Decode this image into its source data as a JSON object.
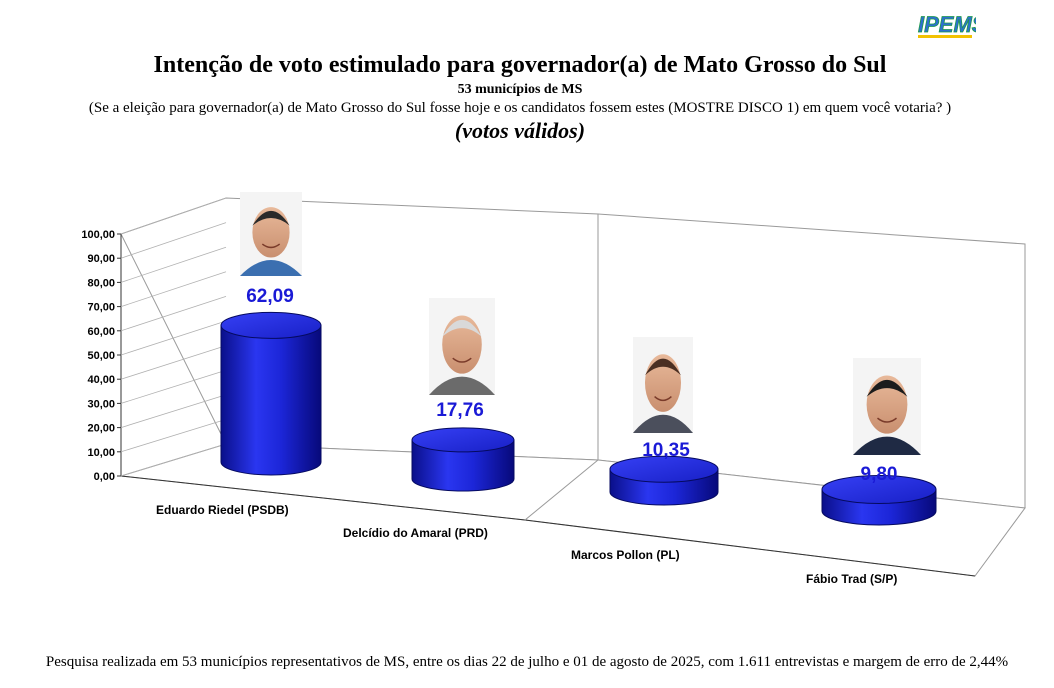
{
  "logo_text": "IPEMS",
  "title": "Intenção de voto estimulado para governador(a) de Mato Grosso do Sul",
  "subtitle": "53 municípios de  MS",
  "question": "(Se a eleição para governador(a) de Mato Grosso do Sul fosse hoje e os candidatos fossem estes (MOSTRE DISCO 1) em quem você votaria? )",
  "note": "(votos válidos)",
  "footer": "Pesquisa realizada em 53  municípios representativos de MS, entre os dias  22 de julho e 01 de agosto de 2025, com 1.611  entrevistas e margem de erro de 2,44%",
  "colors": {
    "bar": "#1f2be0",
    "label": "#1a1ad6"
  },
  "chart_data": {
    "type": "bar",
    "style": "3d-cylinder",
    "categories": [
      "Eduardo Riedel (PSDB)",
      "Delcídio do Amaral (PRD)",
      "Marcos Pollon (PL)",
      "Fábio Trad (S/P)"
    ],
    "values": [
      62.09,
      17.76,
      10.35,
      9.8
    ],
    "value_labels": [
      "62,09",
      "17,76",
      "10,35",
      "9,80"
    ],
    "ylim": [
      0,
      100
    ],
    "yticks": [
      "0,00",
      "10,00",
      "20,00",
      "30,00",
      "40,00",
      "50,00",
      "60,00",
      "70,00",
      "80,00",
      "90,00",
      "100,00"
    ],
    "grid": true,
    "legend": "none",
    "candidate_photos": [
      "photo-eduardo-riedel",
      "photo-delcidio-do-amaral",
      "photo-marcos-pollon",
      "photo-fabio-trad"
    ]
  }
}
